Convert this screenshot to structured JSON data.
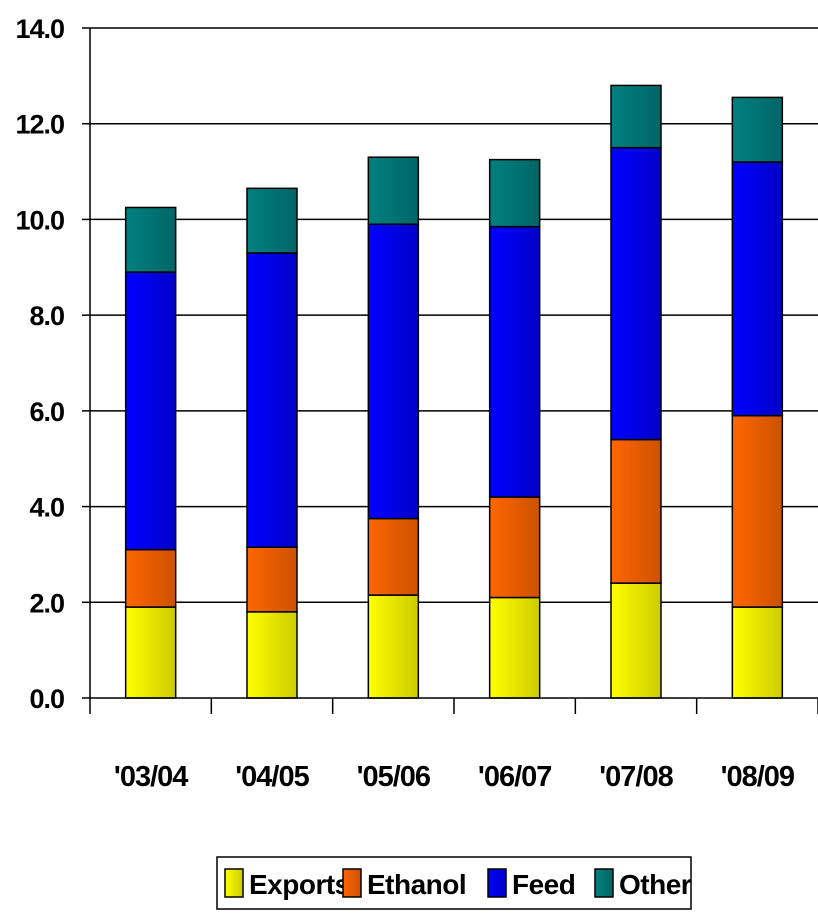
{
  "chart_data": {
    "type": "bar",
    "stacked": true,
    "categories": [
      "'03/04",
      "'04/05",
      "'05/06",
      "'06/07",
      "'07/08",
      "'08/09"
    ],
    "series": [
      {
        "name": "Exports",
        "values": [
          1.9,
          1.8,
          2.15,
          2.1,
          2.4,
          1.9
        ],
        "color": "#ffff00"
      },
      {
        "name": "Ethanol",
        "values": [
          1.2,
          1.35,
          1.6,
          2.1,
          3.0,
          4.0
        ],
        "color": "#ff6600"
      },
      {
        "name": "Feed",
        "values": [
          5.8,
          6.15,
          6.15,
          5.65,
          6.1,
          5.3
        ],
        "color": "#0000ff"
      },
      {
        "name": "Other",
        "values": [
          1.35,
          1.35,
          1.4,
          1.4,
          1.3,
          1.35
        ],
        "color": "#008080"
      }
    ],
    "yticks": [
      "0.0",
      "2.0",
      "4.0",
      "6.0",
      "8.0",
      "10.0",
      "12.0",
      "14.0"
    ],
    "ylim": [
      0,
      14
    ],
    "grid": true,
    "legend_position": "bottom",
    "title": "",
    "xlabel": "",
    "ylabel": ""
  }
}
